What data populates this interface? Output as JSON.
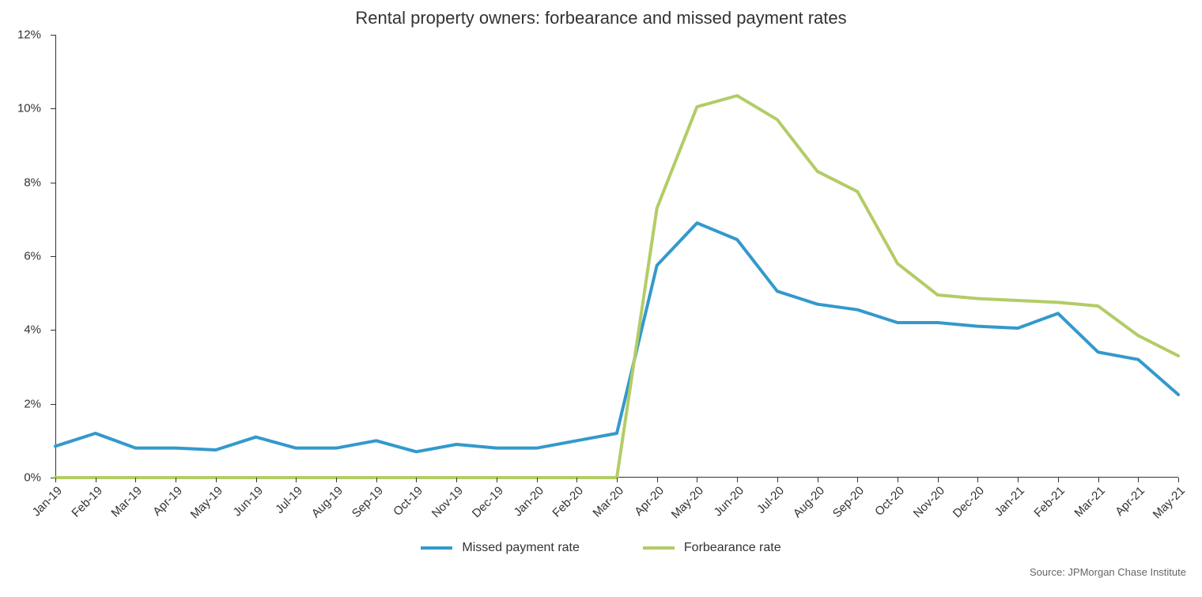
{
  "chart": {
    "type": "line",
    "title": "Rental property owners: forbearance and missed payment rates",
    "title_fontsize": 22,
    "background_color": "#ffffff",
    "axis_color": "#333333",
    "text_color": "#333333",
    "tick_fontsize": 15,
    "ylim": [
      0,
      12
    ],
    "ytick_step": 2,
    "y_suffix": "%",
    "x_labels": [
      "Jan-19",
      "Feb-19",
      "Mar-19",
      "Apr-19",
      "May-19",
      "Jun-19",
      "Jul-19",
      "Aug-19",
      "Sep-19",
      "Oct-19",
      "Nov-19",
      "Dec-19",
      "Jan-20",
      "Feb-20",
      "Mar-20",
      "Apr-20",
      "May-20",
      "Jun-20",
      "Jul-20",
      "Aug-20",
      "Sep-20",
      "Oct-20",
      "Nov-20",
      "Dec-20",
      "Jan-21",
      "Feb-21",
      "Mar-21",
      "Apr-21",
      "May-21"
    ],
    "x_label_rotation": -45,
    "series": [
      {
        "name": "Missed payment rate",
        "color": "#3399cc",
        "line_width": 4,
        "values": [
          0.85,
          1.2,
          0.8,
          0.8,
          0.75,
          1.1,
          0.8,
          0.8,
          1.0,
          0.7,
          0.9,
          0.8,
          0.8,
          1.0,
          1.2,
          5.75,
          6.9,
          6.45,
          5.05,
          4.7,
          4.55,
          4.2,
          4.2,
          4.1,
          4.05,
          4.45,
          3.4,
          3.2,
          2.25
        ]
      },
      {
        "name": "Forbearance rate",
        "color": "#b3cc66",
        "line_width": 4,
        "values": [
          0,
          0,
          0,
          0,
          0,
          0,
          0,
          0,
          0,
          0,
          0,
          0,
          0,
          0,
          0,
          7.3,
          10.05,
          10.35,
          9.7,
          8.3,
          7.75,
          5.8,
          4.95,
          4.85,
          4.8,
          4.75,
          4.65,
          3.85,
          3.3
        ]
      }
    ],
    "legend": {
      "position": "bottom",
      "fontsize": 16,
      "swatch_width": 40,
      "swatch_height": 4
    },
    "source_text": "Source: JPMorgan Chase Institute",
    "source_fontsize": 13,
    "source_color": "#666666"
  }
}
